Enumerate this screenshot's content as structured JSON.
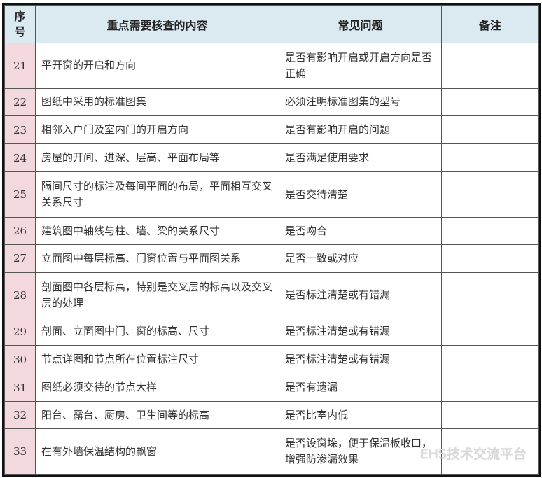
{
  "headers": {
    "index": "序号",
    "content": "重点需要核查的内容",
    "issue": "常见问题",
    "remark": "备注"
  },
  "rows": [
    {
      "no": "21",
      "content": "平开窗的开启和方向",
      "issue": "是否有影响开启或开启方向是否正确"
    },
    {
      "no": "22",
      "content": "图纸中采用的标准图集",
      "issue": "必须注明标准图集的型号"
    },
    {
      "no": "23",
      "content": "相邻入户门及室内门的开启方向",
      "issue": "是否有影响开启的问题"
    },
    {
      "no": "24",
      "content": "房屋的开间、进深、层高、平面布局等",
      "issue": "是否满足使用要求"
    },
    {
      "no": "25",
      "content": "隔间尺寸的标注及每间平面的布局，平面相互交叉关系尺寸",
      "issue": "是否交待清楚"
    },
    {
      "no": "26",
      "content": "建筑图中轴线与柱、墙、梁的关系尺寸",
      "issue": "是否吻合"
    },
    {
      "no": "27",
      "content": "立面图中每层标高、门窗位置与平面图关系",
      "issue": "是否一致或对应"
    },
    {
      "no": "28",
      "content": "剖面图中各层标高，特别是交叉层的标高以及交叉层的处理",
      "issue": "是否标注清楚或有错漏"
    },
    {
      "no": "29",
      "content": "剖面、立面图中门、窗的标高、尺寸",
      "issue": "是否标注清楚或有错漏"
    },
    {
      "no": "30",
      "content": "节点详图和节点所在位置标注尺寸",
      "issue": "是否标注清楚或有错漏"
    },
    {
      "no": "31",
      "content": "图纸必须交待的节点大样",
      "issue": "是否有遗漏"
    },
    {
      "no": "32",
      "content": "阳台、露台、厨房、卫生间等的标高",
      "issue": "是否比室内低"
    },
    {
      "no": "33",
      "content": "在有外墙保温结构的飘窗",
      "issue": "是否设窗垛，便于保温板收口，增强防渗漏效果"
    }
  ],
  "watermark": "EHS技术交流平台",
  "colors": {
    "header_bg": "#dbe9f1",
    "index_bg": "#f3d9de"
  }
}
